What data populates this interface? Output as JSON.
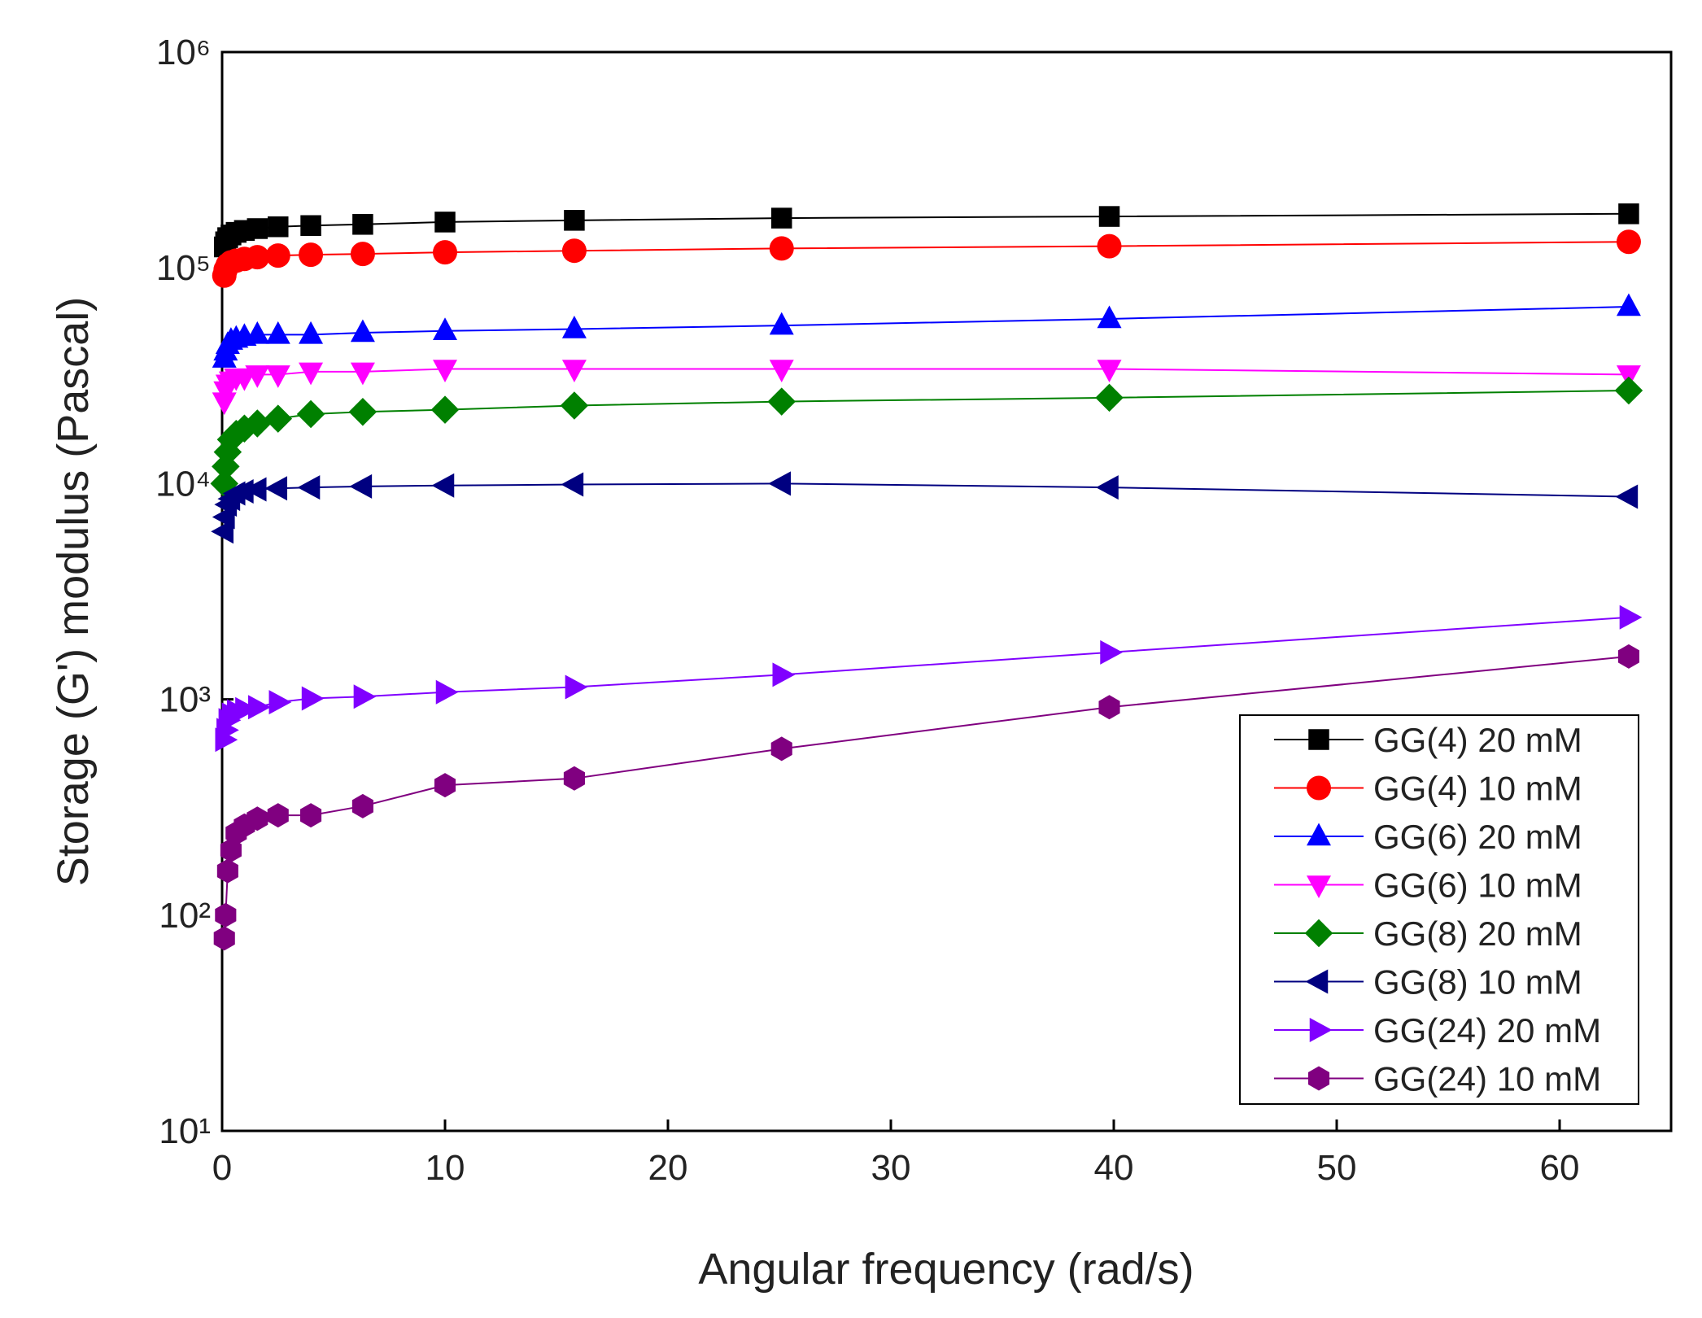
{
  "chart_data": {
    "type": "line",
    "x_label": "Angular frequency (rad/s)",
    "y_label": "Storage (G') modulus (Pascal)",
    "y_scale": "log",
    "xlim": [
      0,
      65
    ],
    "xticks": [
      0,
      10,
      20,
      30,
      40,
      50,
      60
    ],
    "ylim": [
      10,
      1000000
    ],
    "yticks": [
      {
        "value": 10,
        "label": "10¹"
      },
      {
        "value": 100,
        "label": "10²"
      },
      {
        "value": 1000,
        "label": "10³"
      },
      {
        "value": 10000,
        "label": "10⁴"
      },
      {
        "value": 100000,
        "label": "10⁵"
      },
      {
        "value": 1000000,
        "label": "10⁶"
      }
    ],
    "legend": "lower right",
    "x": [
      0.1,
      0.158,
      0.251,
      0.398,
      0.631,
      1,
      1.58,
      2.51,
      3.98,
      6.31,
      10,
      15.8,
      25.1,
      39.8,
      63.1
    ],
    "series": [
      {
        "name": "GG(4) 20 mM",
        "color": "#000000",
        "marker": "square",
        "values": [
          125000,
          132000,
          138000,
          142000,
          146000,
          149000,
          152000,
          155000,
          157000,
          159000,
          163000,
          166000,
          170000,
          173000,
          178000
        ]
      },
      {
        "name": "GG(4) 10 mM",
        "color": "#ff0000",
        "marker": "circle",
        "values": [
          92000,
          98000,
          103000,
          106000,
          108000,
          110000,
          112000,
          114000,
          115000,
          116000,
          118000,
          120000,
          123000,
          126000,
          132000
        ]
      },
      {
        "name": "GG(6) 20 mM",
        "color": "#0000ff",
        "marker": "triangle-up",
        "values": [
          38000,
          41000,
          44000,
          46000,
          47000,
          48000,
          49000,
          49000,
          49000,
          50000,
          51000,
          52000,
          54000,
          58000,
          66000
        ]
      },
      {
        "name": "GG(6) 10 mM",
        "color": "#ff00ff",
        "marker": "triangle-down",
        "values": [
          24000,
          27000,
          29000,
          30000,
          31000,
          31000,
          32000,
          32000,
          33000,
          33000,
          34000,
          34000,
          34000,
          34000,
          32000
        ]
      },
      {
        "name": "GG(8) 20 mM",
        "color": "#008000",
        "marker": "diamond",
        "values": [
          10000,
          12000,
          14000,
          16000,
          17000,
          18000,
          19000,
          20000,
          21000,
          21500,
          22000,
          23000,
          24000,
          25000,
          27000
        ]
      },
      {
        "name": "GG(8) 10 mM",
        "color": "#000080",
        "marker": "triangle-left",
        "values": [
          6000,
          7000,
          8000,
          8500,
          9000,
          9200,
          9400,
          9500,
          9600,
          9700,
          9800,
          9900,
          10000,
          9600,
          8700
        ]
      },
      {
        "name": "GG(24) 20 mM",
        "color": "#8000ff",
        "marker": "triangle-right",
        "values": [
          650,
          720,
          800,
          850,
          880,
          900,
          920,
          970,
          1010,
          1030,
          1080,
          1140,
          1300,
          1650,
          2400
        ]
      },
      {
        "name": "GG(24) 10 mM",
        "color": "#800080",
        "marker": "hexagon",
        "values": [
          78,
          100,
          160,
          200,
          240,
          260,
          280,
          290,
          290,
          320,
          400,
          430,
          590,
          920,
          1580
        ]
      }
    ]
  }
}
